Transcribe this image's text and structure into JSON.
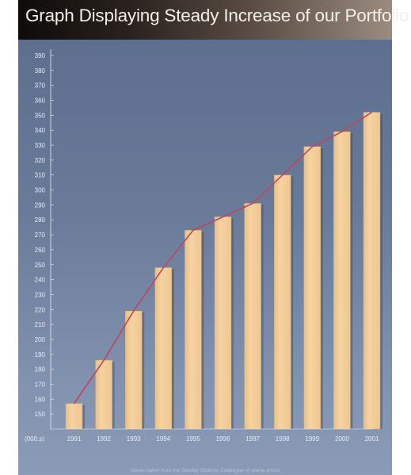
{
  "title": "Graph Displaying Steady Increase of our Portfolio",
  "colors": {
    "bar": "#f3cc96",
    "bar_shadow": "#3d4a66",
    "trend_line": "#c0455c",
    "axis": "#e8ecf5"
  },
  "chart_data": {
    "type": "bar",
    "title": "Graph Displaying Steady Increase of our Portfolio",
    "xlabel": "",
    "ylabel": "",
    "units_label": "(000,s)",
    "categories": [
      "1991",
      "1992",
      "1993",
      "1994",
      "1995",
      "1996",
      "1997",
      "1998",
      "1999",
      "2000",
      "2001"
    ],
    "series": [
      {
        "values": [
          157,
          186,
          219,
          248,
          273,
          282,
          291,
          310,
          329,
          339,
          352
        ]
      }
    ],
    "trend_line": true,
    "ylim": [
      140,
      390
    ],
    "yticks": [
      150,
      160,
      170,
      180,
      190,
      200,
      210,
      220,
      230,
      240,
      250,
      260,
      270,
      280,
      290,
      300,
      310,
      320,
      330,
      340,
      350,
      360,
      370,
      380,
      390
    ],
    "grid": false,
    "legend": "none",
    "source_note": "Values taken from the Stanley Gibbons Catalogue of stamp prices"
  }
}
